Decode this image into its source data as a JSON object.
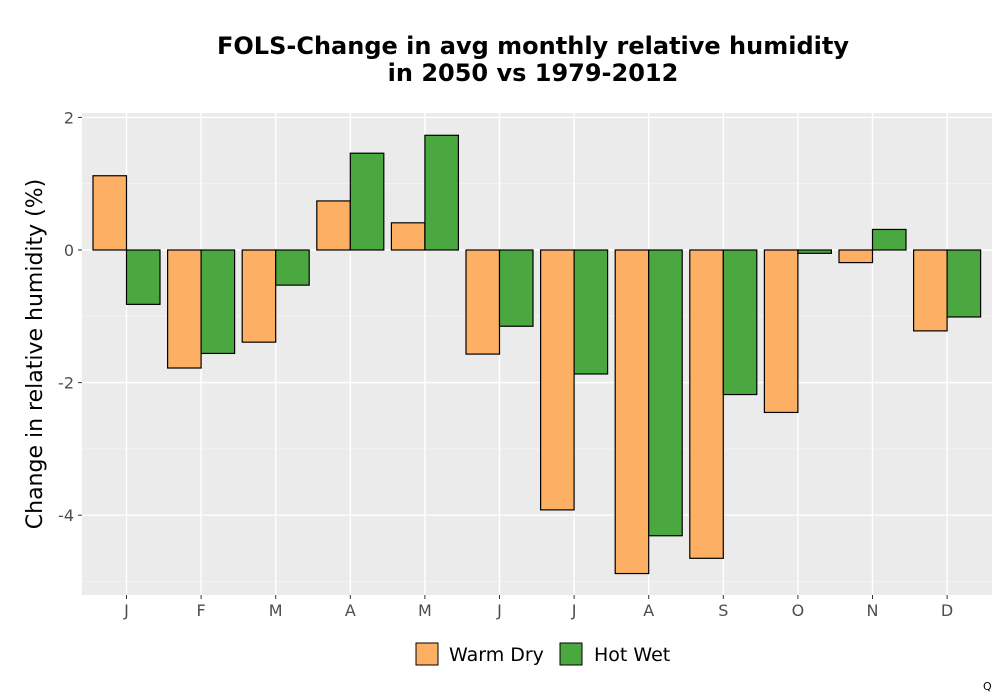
{
  "chart_data": {
    "type": "bar",
    "title_lines": [
      "FOLS-Change in avg monthly relative humidity",
      "in 2050 vs 1979-2012"
    ],
    "xlabel": "",
    "ylabel": "Change in relative humidity (%)",
    "categories": [
      "J",
      "F",
      "M",
      "A",
      "M",
      "J",
      "J",
      "A",
      "S",
      "O",
      "N",
      "D"
    ],
    "series": [
      {
        "name": "Warm Dry",
        "color": "#FDB064",
        "values": [
          1.12,
          -1.78,
          -1.39,
          0.74,
          0.41,
          -1.57,
          -3.92,
          -4.88,
          -4.65,
          -2.45,
          -0.19,
          -1.22
        ]
      },
      {
        "name": "Hot Wet",
        "color": "#4BA840",
        "values": [
          -0.82,
          -1.56,
          -0.53,
          1.46,
          1.73,
          -1.15,
          -1.87,
          -4.31,
          -2.18,
          -0.05,
          0.31,
          -1.01
        ]
      }
    ],
    "ylim": [
      -5.2,
      2.1
    ],
    "yticks": [
      2,
      0,
      -2,
      -4
    ],
    "ytick_labels": [
      "2",
      "0",
      "-2",
      "-4"
    ],
    "grid": true,
    "background": "#EBEBEB",
    "legend_position": "bottom"
  },
  "corner_mark": "Q"
}
